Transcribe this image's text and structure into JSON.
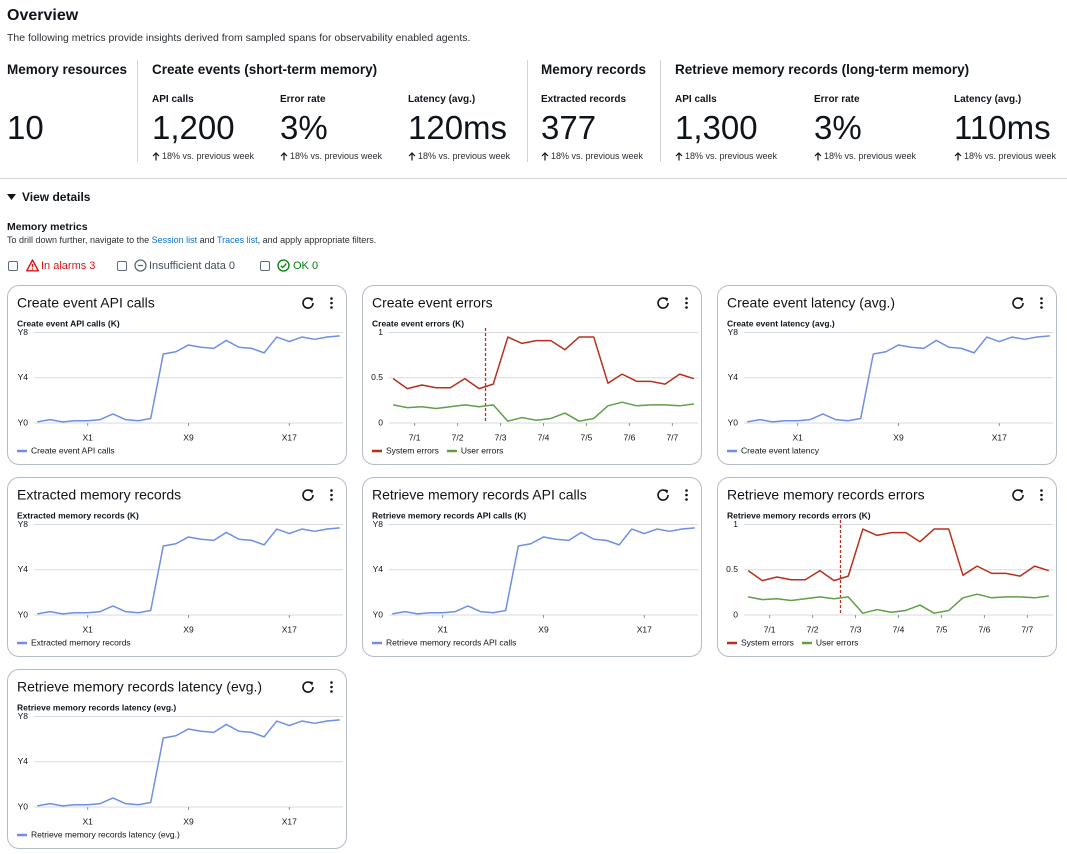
{
  "header": {
    "title": "Overview",
    "description": "The following metrics provide insights derived from sampled spans for observability enabled agents."
  },
  "summary": [
    {
      "title": "Memory resources",
      "metrics": [
        {
          "value": "10"
        }
      ]
    },
    {
      "title": "Create events (short-term memory)",
      "metrics": [
        {
          "label": "API calls",
          "value": "1,200",
          "change": "18% vs. previous week"
        },
        {
          "label": "Error rate",
          "value": "3%",
          "change": "18% vs. previous week"
        },
        {
          "label": "Latency (avg.)",
          "value": "120ms",
          "change": "18% vs. previous week"
        }
      ]
    },
    {
      "title": "Memory records",
      "metrics": [
        {
          "label": "Extracted records",
          "value": "377",
          "change": "18% vs. previous week"
        }
      ]
    },
    {
      "title": "Retrieve memory records (long-term memory)",
      "metrics": [
        {
          "label": "API calls",
          "value": "1,300",
          "change": "18% vs. previous week"
        },
        {
          "label": "Error rate",
          "value": "3%",
          "change": "18% vs. previous week"
        },
        {
          "label": "Latency (avg.)",
          "value": "110ms",
          "change": "18% vs. previous week"
        }
      ]
    }
  ],
  "details": {
    "toggle": "View details",
    "section_title": "Memory metrics",
    "description": {
      "before": "To drill down further, navigate to the ",
      "link1": "Session list",
      "middle": " and ",
      "link2": "Traces list",
      "after": ", and apply appropriate filters."
    },
    "filters": [
      {
        "label": "In alarms 3"
      },
      {
        "label": "Insufficient data 0"
      },
      {
        "label": "OK 0"
      }
    ]
  },
  "widgets": [
    {
      "title": "Create event API calls",
      "chart": {
        "type": "line",
        "title": "Create event API calls (K)",
        "x": [
          -3,
          -2,
          -1,
          0,
          1,
          2,
          3,
          4,
          5,
          6,
          7,
          8,
          9,
          10,
          11,
          12,
          13,
          14,
          15,
          16,
          17,
          18,
          19,
          20,
          21
        ],
        "series": [
          {
            "name": "Create event API calls",
            "color": "#6f8fe4",
            "values": [
              0.1,
              0.3,
              0.1,
              0.2,
              0.2,
              0.3,
              0.8,
              0.3,
              0.2,
              0.4,
              6.1,
              6.3,
              6.9,
              6.7,
              6.6,
              7.3,
              6.7,
              6.6,
              6.2,
              7.6,
              7.2,
              7.6,
              7.4,
              7.6,
              7.7
            ]
          }
        ],
        "xlim": [
          -3.1,
          21.1
        ],
        "ylim": [
          0,
          8.4
        ],
        "xticks": [
          {
            "value": 1,
            "label": "X1"
          },
          {
            "value": 9,
            "label": "X9"
          },
          {
            "value": 17,
            "label": "X17"
          }
        ],
        "yticks": [
          {
            "value": 0,
            "label": "Y0"
          },
          {
            "value": 4,
            "label": "Y4"
          },
          {
            "value": 8,
            "label": "Y8"
          }
        ],
        "grid": true
      }
    },
    {
      "title": "Create event errors",
      "chart": {
        "type": "line",
        "title": "Create event errors (K)",
        "x": [
          0.5,
          0.83,
          1.17,
          1.5,
          1.83,
          2.17,
          2.5,
          2.83,
          3.17,
          3.5,
          3.83,
          4.17,
          4.5,
          4.83,
          5.17,
          5.5,
          5.83,
          6.17,
          6.5,
          6.83,
          7.17,
          7.5
        ],
        "series": [
          {
            "name": "System errors",
            "color": "#b8301b",
            "values": [
              0.49,
              0.38,
              0.42,
              0.39,
              0.39,
              0.49,
              0.38,
              0.43,
              0.95,
              0.88,
              0.91,
              0.91,
              0.81,
              0.95,
              0.95,
              0.44,
              0.54,
              0.46,
              0.46,
              0.43,
              0.54,
              0.49
            ]
          },
          {
            "name": "User errors",
            "color": "#5f9f48",
            "values": [
              0.2,
              0.17,
              0.18,
              0.16,
              0.18,
              0.2,
              0.18,
              0.2,
              0.02,
              0.06,
              0.03,
              0.05,
              0.11,
              0.02,
              0.05,
              0.19,
              0.23,
              0.19,
              0.2,
              0.2,
              0.19,
              0.21
            ]
          }
        ],
        "marker_x": 2.65,
        "xlim": [
          0.45,
          7.55
        ],
        "ylim": [
          0,
          1.05
        ],
        "xticks": [
          {
            "value": 1,
            "label": "7/1"
          },
          {
            "value": 2,
            "label": "7/2"
          },
          {
            "value": 3,
            "label": "7/3"
          },
          {
            "value": 4,
            "label": "7/4"
          },
          {
            "value": 5,
            "label": "7/5"
          },
          {
            "value": 6,
            "label": "7/6"
          },
          {
            "value": 7,
            "label": "7/7"
          }
        ],
        "yticks": [
          0,
          0.5,
          1
        ],
        "grid": true
      }
    },
    {
      "title": "Create event latency (avg.)",
      "chart": {
        "type": "line",
        "title": "Create event latency (avg.)",
        "x": [
          -3,
          -2,
          -1,
          0,
          1,
          2,
          3,
          4,
          5,
          6,
          7,
          8,
          9,
          10,
          11,
          12,
          13,
          14,
          15,
          16,
          17,
          18,
          19,
          20,
          21
        ],
        "series": [
          {
            "name": "Create event latency",
            "color": "#6f8fe4",
            "values": [
              0.1,
              0.3,
              0.1,
              0.2,
              0.2,
              0.3,
              0.8,
              0.3,
              0.2,
              0.4,
              6.1,
              6.3,
              6.9,
              6.7,
              6.6,
              7.3,
              6.7,
              6.6,
              6.2,
              7.6,
              7.2,
              7.6,
              7.4,
              7.6,
              7.7
            ]
          }
        ],
        "xlim": [
          -3.1,
          21.1
        ],
        "ylim": [
          0,
          8.4
        ],
        "xticks": [
          {
            "value": 1,
            "label": "X1"
          },
          {
            "value": 9,
            "label": "X9"
          },
          {
            "value": 17,
            "label": "X17"
          }
        ],
        "yticks": [
          {
            "value": 0,
            "label": "Y0"
          },
          {
            "value": 4,
            "label": "Y4"
          },
          {
            "value": 8,
            "label": "Y8"
          }
        ],
        "grid": true
      }
    },
    {
      "title": "Extracted memory records",
      "chart": {
        "type": "line",
        "title": "Extracted memory records (K)",
        "x": [
          -3,
          -2,
          -1,
          0,
          1,
          2,
          3,
          4,
          5,
          6,
          7,
          8,
          9,
          10,
          11,
          12,
          13,
          14,
          15,
          16,
          17,
          18,
          19,
          20,
          21
        ],
        "series": [
          {
            "name": "Extracted memory records",
            "color": "#6f8fe4",
            "values": [
              0.1,
              0.3,
              0.1,
              0.2,
              0.2,
              0.3,
              0.8,
              0.3,
              0.2,
              0.4,
              6.1,
              6.3,
              6.9,
              6.7,
              6.6,
              7.3,
              6.7,
              6.6,
              6.2,
              7.6,
              7.2,
              7.6,
              7.4,
              7.6,
              7.7
            ]
          }
        ],
        "xlim": [
          -3.1,
          21.1
        ],
        "ylim": [
          0,
          8.4
        ],
        "xticks": [
          {
            "value": 1,
            "label": "X1"
          },
          {
            "value": 9,
            "label": "X9"
          },
          {
            "value": 17,
            "label": "X17"
          }
        ],
        "yticks": [
          {
            "value": 0,
            "label": "Y0"
          },
          {
            "value": 4,
            "label": "Y4"
          },
          {
            "value": 8,
            "label": "Y8"
          }
        ],
        "grid": true
      }
    },
    {
      "title": "Retrieve memory records API calls",
      "chart": {
        "type": "line",
        "title": "Retrieve memory records API calls (K)",
        "x": [
          -3,
          -2,
          -1,
          0,
          1,
          2,
          3,
          4,
          5,
          6,
          7,
          8,
          9,
          10,
          11,
          12,
          13,
          14,
          15,
          16,
          17,
          18,
          19,
          20,
          21
        ],
        "series": [
          {
            "name": "Retrieve memory records API calls",
            "color": "#6f8fe4",
            "values": [
              0.1,
              0.3,
              0.1,
              0.2,
              0.2,
              0.3,
              0.8,
              0.3,
              0.2,
              0.4,
              6.1,
              6.3,
              6.9,
              6.7,
              6.6,
              7.3,
              6.7,
              6.6,
              6.2,
              7.6,
              7.2,
              7.6,
              7.4,
              7.6,
              7.7
            ]
          }
        ],
        "xlim": [
          -3.1,
          21.1
        ],
        "ylim": [
          0,
          8.4
        ],
        "xticks": [
          {
            "value": 1,
            "label": "X1"
          },
          {
            "value": 9,
            "label": "X9"
          },
          {
            "value": 17,
            "label": "X17"
          }
        ],
        "yticks": [
          {
            "value": 0,
            "label": "Y0"
          },
          {
            "value": 4,
            "label": "Y4"
          },
          {
            "value": 8,
            "label": "Y8"
          }
        ],
        "grid": true
      }
    },
    {
      "title": "Retrieve memory records errors",
      "chart": {
        "type": "line",
        "title": "Retrieve memory records errors (K)",
        "x": [
          0.5,
          0.83,
          1.17,
          1.5,
          1.83,
          2.17,
          2.5,
          2.83,
          3.17,
          3.5,
          3.83,
          4.17,
          4.5,
          4.83,
          5.17,
          5.5,
          5.83,
          6.17,
          6.5,
          6.83,
          7.17,
          7.5
        ],
        "series": [
          {
            "name": "System errors",
            "color": "#b8301b",
            "values": [
              0.49,
              0.38,
              0.42,
              0.39,
              0.39,
              0.49,
              0.38,
              0.43,
              0.95,
              0.88,
              0.91,
              0.91,
              0.81,
              0.95,
              0.95,
              0.44,
              0.54,
              0.46,
              0.46,
              0.43,
              0.54,
              0.49
            ]
          },
          {
            "name": "User errors",
            "color": "#5f9f48",
            "values": [
              0.2,
              0.17,
              0.18,
              0.16,
              0.18,
              0.2,
              0.18,
              0.2,
              0.02,
              0.06,
              0.03,
              0.05,
              0.11,
              0.02,
              0.05,
              0.19,
              0.23,
              0.19,
              0.2,
              0.2,
              0.19,
              0.21
            ]
          }
        ],
        "marker_x": 2.65,
        "xlim": [
          0.45,
          7.55
        ],
        "ylim": [
          0,
          1.05
        ],
        "xticks": [
          {
            "value": 1,
            "label": "7/1"
          },
          {
            "value": 2,
            "label": "7/2"
          },
          {
            "value": 3,
            "label": "7/3"
          },
          {
            "value": 4,
            "label": "7/4"
          },
          {
            "value": 5,
            "label": "7/5"
          },
          {
            "value": 6,
            "label": "7/6"
          },
          {
            "value": 7,
            "label": "7/7"
          }
        ],
        "yticks": [
          0,
          0.5,
          1
        ],
        "grid": true
      }
    },
    {
      "title": "Retrieve memory records latency (evg.)",
      "chart": {
        "type": "line",
        "title": "Retrieve memory records latency (evg.)",
        "x": [
          -3,
          -2,
          -1,
          0,
          1,
          2,
          3,
          4,
          5,
          6,
          7,
          8,
          9,
          10,
          11,
          12,
          13,
          14,
          15,
          16,
          17,
          18,
          19,
          20,
          21
        ],
        "series": [
          {
            "name": "Retrieve memory records latency (evg.)",
            "color": "#6f8fe4",
            "values": [
              0.1,
              0.3,
              0.1,
              0.2,
              0.2,
              0.3,
              0.8,
              0.3,
              0.2,
              0.4,
              6.1,
              6.3,
              6.9,
              6.7,
              6.6,
              7.3,
              6.7,
              6.6,
              6.2,
              7.6,
              7.2,
              7.6,
              7.4,
              7.6,
              7.7
            ]
          }
        ],
        "xlim": [
          -3.1,
          21.1
        ],
        "ylim": [
          0,
          8.4
        ],
        "xticks": [
          {
            "value": 1,
            "label": "X1"
          },
          {
            "value": 9,
            "label": "X9"
          },
          {
            "value": 17,
            "label": "X17"
          }
        ],
        "yticks": [
          {
            "value": 0,
            "label": "Y0"
          },
          {
            "value": 4,
            "label": "Y4"
          },
          {
            "value": 8,
            "label": "Y8"
          }
        ],
        "grid": true
      }
    }
  ]
}
